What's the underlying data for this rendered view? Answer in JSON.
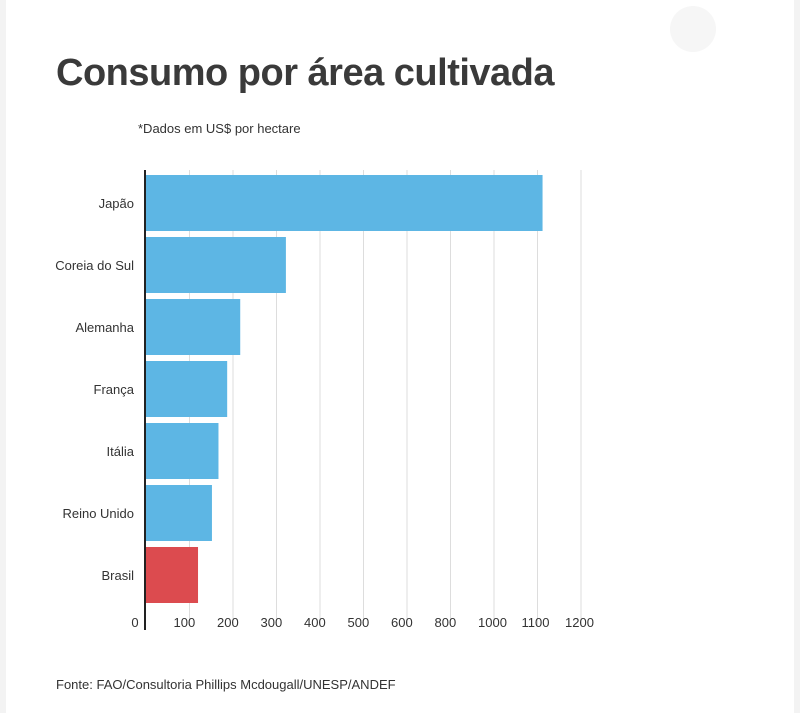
{
  "page": {
    "title": "Consumo por área cultivada",
    "subtitle": "*Dados em US$ por hectare",
    "source": "Fonte: FAO/Consultoria Phillips Mcdougall/UNESP/ANDEF"
  },
  "chart_data": {
    "type": "bar",
    "orientation": "horizontal",
    "categories": [
      "Japão",
      "Coreia do Sul",
      "Alemanha",
      "França",
      "Itália",
      "Reino Unido",
      "Brasil"
    ],
    "values": [
      1130,
      340,
      235,
      205,
      185,
      170,
      138
    ],
    "colors": [
      "#5db6e4",
      "#5db6e4",
      "#5db6e4",
      "#5db6e4",
      "#5db6e4",
      "#5db6e4",
      "#dc4b4f"
    ],
    "x_ticks": [
      0,
      100,
      200,
      300,
      400,
      500,
      600,
      800,
      1000,
      1100,
      1200
    ],
    "grid": true,
    "legend": "none"
  }
}
